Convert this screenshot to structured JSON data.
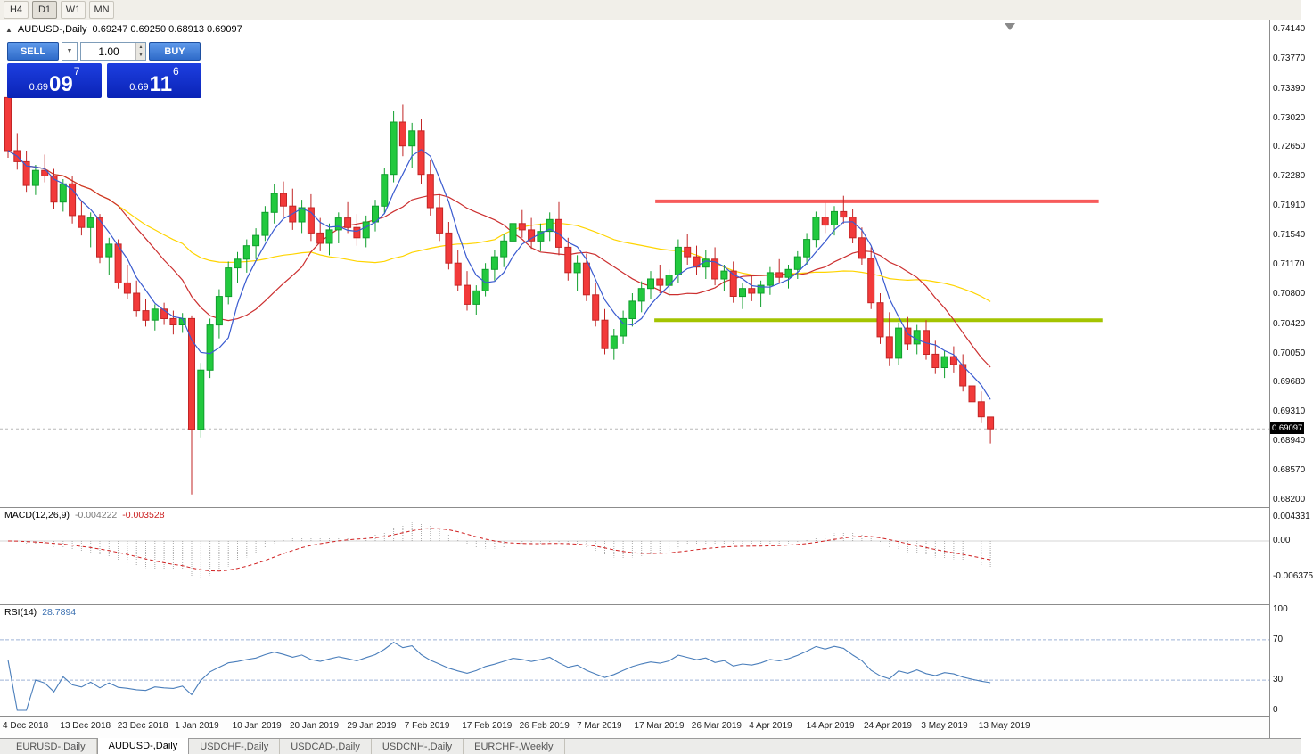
{
  "toolbar": {
    "timeframes": [
      {
        "label": "H4"
      },
      {
        "label": "D1"
      },
      {
        "label": "W1"
      },
      {
        "label": "MN"
      }
    ]
  },
  "trade_panel": {
    "sell_label": "SELL",
    "buy_label": "BUY",
    "volume": "1.00",
    "bid": {
      "prefix": "0.69",
      "big": "09",
      "sup": "7"
    },
    "ask": {
      "prefix": "0.69",
      "big": "11",
      "sup": "6"
    }
  },
  "tabs": {
    "items": [
      {
        "label": "EURUSD-,Daily"
      },
      {
        "label": "AUDUSD-,Daily"
      },
      {
        "label": "USDCHF-,Daily"
      },
      {
        "label": "USDCAD-,Daily"
      },
      {
        "label": "USDCNH-,Daily"
      },
      {
        "label": "EURCHF-,Weekly"
      }
    ]
  },
  "colors": {
    "up": "#22c93e",
    "up_border": "#0f9e2c",
    "down": "#f23a3a",
    "down_border": "#c22525",
    "ma_fast": "#3a5bd0",
    "ma_mid": "#cc2f2f",
    "ma_slow": "#ffd400",
    "resistance": "#f75b5b",
    "support": "#a4c400",
    "macd_hist": "#a9a9a9",
    "macd_signal": "#d02020",
    "rsi_line": "#4a7ebb",
    "rsi_level": "#9fb4d8",
    "bid_line": "#b8b8b8"
  },
  "chart_data": {
    "type": "candlestick",
    "title": "AUDUSD-,Daily",
    "ohlc_text": "0.69247 0.69250 0.68913 0.69097",
    "bid": 0.69097,
    "bid_label": "0.69097",
    "y_max": 0.7414,
    "y_min": 0.682,
    "y_axis_labels": [
      "0.74140",
      "0.73770",
      "0.73390",
      "0.73020",
      "0.72650",
      "0.72280",
      "0.71910",
      "0.71540",
      "0.71170",
      "0.70800",
      "0.70420",
      "0.70050",
      "0.69680",
      "0.69310",
      "0.68940",
      "0.68570",
      "0.68200"
    ],
    "x_labels": [
      "4 Dec 2018",
      "13 Dec 2018",
      "23 Dec 2018",
      "1 Jan 2019",
      "10 Jan 2019",
      "20 Jan 2019",
      "29 Jan 2019",
      "7 Feb 2019",
      "17 Feb 2019",
      "26 Feb 2019",
      "7 Mar 2019",
      "17 Mar 2019",
      "26 Mar 2019",
      "4 Apr 2019",
      "14 Apr 2019",
      "24 Apr 2019",
      "3 May 2019",
      "13 May 2019"
    ],
    "hlines": [
      {
        "name": "resistance",
        "price": 0.7197,
        "i1": 70.5,
        "i2": 118.8
      },
      {
        "name": "support",
        "price": 0.7047,
        "i1": 70.4,
        "i2": 119.2
      }
    ],
    "indicators": {
      "macd": {
        "label": "MACD(12,26,9)",
        "value": "-0.004222",
        "signal": "-0.003528",
        "axis_labels": [
          "0.004331",
          "0.00",
          "-0.006375"
        ]
      },
      "rsi": {
        "label": "RSI(14)",
        "value": "28.7894",
        "axis_labels": [
          "100",
          "70",
          "30",
          "0"
        ],
        "levels": [
          70,
          30
        ]
      }
    },
    "candles": [
      [
        0.7328,
        0.7341,
        0.7252,
        0.7261
      ],
      [
        0.7261,
        0.7283,
        0.7237,
        0.7247
      ],
      [
        0.7247,
        0.7261,
        0.7209,
        0.7217
      ],
      [
        0.7217,
        0.7243,
        0.7205,
        0.7236
      ],
      [
        0.7236,
        0.7256,
        0.7221,
        0.7229
      ],
      [
        0.7229,
        0.7238,
        0.7187,
        0.7196
      ],
      [
        0.7196,
        0.7225,
        0.7184,
        0.7219
      ],
      [
        0.7219,
        0.7229,
        0.7169,
        0.7179
      ],
      [
        0.7179,
        0.7197,
        0.7154,
        0.7164
      ],
      [
        0.7164,
        0.7183,
        0.7139,
        0.7176
      ],
      [
        0.7176,
        0.7181,
        0.7119,
        0.7127
      ],
      [
        0.7127,
        0.7151,
        0.7104,
        0.7143
      ],
      [
        0.7143,
        0.7149,
        0.7087,
        0.7094
      ],
      [
        0.7094,
        0.7117,
        0.7074,
        0.7081
      ],
      [
        0.7081,
        0.7097,
        0.7051,
        0.7059
      ],
      [
        0.7059,
        0.7074,
        0.7039,
        0.7047
      ],
      [
        0.7047,
        0.7067,
        0.7034,
        0.7061
      ],
      [
        0.7061,
        0.7069,
        0.7041,
        0.7049
      ],
      [
        0.7049,
        0.7059,
        0.7029,
        0.7041
      ],
      [
        0.7041,
        0.7056,
        0.7031,
        0.7049
      ],
      [
        0.7049,
        0.7053,
        0.6827,
        0.6909
      ],
      [
        0.6909,
        0.6993,
        0.6899,
        0.6984
      ],
      [
        0.6984,
        0.7049,
        0.6974,
        0.7041
      ],
      [
        0.7041,
        0.7086,
        0.7024,
        0.7077
      ],
      [
        0.7077,
        0.7121,
        0.7067,
        0.7113
      ],
      [
        0.7113,
        0.7133,
        0.7094,
        0.7124
      ],
      [
        0.7124,
        0.7149,
        0.7107,
        0.7141
      ],
      [
        0.7141,
        0.7163,
        0.7124,
        0.7154
      ],
      [
        0.7154,
        0.7191,
        0.7147,
        0.7183
      ],
      [
        0.7183,
        0.7219,
        0.7169,
        0.7207
      ],
      [
        0.7207,
        0.7222,
        0.7177,
        0.7191
      ],
      [
        0.7191,
        0.7213,
        0.7161,
        0.7171
      ],
      [
        0.7171,
        0.7199,
        0.7157,
        0.7189
      ],
      [
        0.7189,
        0.7206,
        0.7147,
        0.7157
      ],
      [
        0.7157,
        0.7176,
        0.7134,
        0.7144
      ],
      [
        0.7144,
        0.7169,
        0.7129,
        0.7161
      ],
      [
        0.7161,
        0.7183,
        0.7144,
        0.7176
      ],
      [
        0.7176,
        0.7196,
        0.7157,
        0.7164
      ],
      [
        0.7164,
        0.7181,
        0.7141,
        0.7151
      ],
      [
        0.7151,
        0.7179,
        0.7139,
        0.7171
      ],
      [
        0.7171,
        0.7199,
        0.7159,
        0.7191
      ],
      [
        0.7191,
        0.7239,
        0.7181,
        0.7231
      ],
      [
        0.7231,
        0.7311,
        0.7221,
        0.7297
      ],
      [
        0.7297,
        0.7319,
        0.7254,
        0.7267
      ],
      [
        0.7267,
        0.7296,
        0.7239,
        0.7286
      ],
      [
        0.7286,
        0.7301,
        0.7219,
        0.7231
      ],
      [
        0.7231,
        0.7249,
        0.7179,
        0.7189
      ],
      [
        0.7189,
        0.7206,
        0.7147,
        0.7157
      ],
      [
        0.7157,
        0.7171,
        0.7111,
        0.7119
      ],
      [
        0.7119,
        0.7136,
        0.7084,
        0.7091
      ],
      [
        0.7091,
        0.7109,
        0.7059,
        0.7067
      ],
      [
        0.7067,
        0.7091,
        0.7054,
        0.7084
      ],
      [
        0.7084,
        0.7119,
        0.7077,
        0.7111
      ],
      [
        0.7111,
        0.7136,
        0.7097,
        0.7127
      ],
      [
        0.7127,
        0.7156,
        0.7114,
        0.7147
      ],
      [
        0.7147,
        0.7179,
        0.7137,
        0.7169
      ],
      [
        0.7169,
        0.7186,
        0.7151,
        0.7161
      ],
      [
        0.7161,
        0.7176,
        0.7137,
        0.7147
      ],
      [
        0.7147,
        0.7169,
        0.7134,
        0.7159
      ],
      [
        0.7159,
        0.7183,
        0.7147,
        0.7174
      ],
      [
        0.7174,
        0.7196,
        0.7129,
        0.7139
      ],
      [
        0.7139,
        0.7151,
        0.7097,
        0.7107
      ],
      [
        0.7107,
        0.7129,
        0.7084,
        0.7119
      ],
      [
        0.7119,
        0.7131,
        0.7071,
        0.7079
      ],
      [
        0.7079,
        0.7094,
        0.7039,
        0.7047
      ],
      [
        0.7047,
        0.7061,
        0.7004,
        0.7011
      ],
      [
        0.7011,
        0.7036,
        0.6997,
        0.7027
      ],
      [
        0.7027,
        0.7059,
        0.7017,
        0.7049
      ],
      [
        0.7049,
        0.7081,
        0.7039,
        0.7071
      ],
      [
        0.7071,
        0.7096,
        0.7057,
        0.7087
      ],
      [
        0.7087,
        0.7109,
        0.7074,
        0.7099
      ],
      [
        0.7099,
        0.7117,
        0.7081,
        0.7091
      ],
      [
        0.7091,
        0.7111,
        0.7077,
        0.7104
      ],
      [
        0.7104,
        0.7149,
        0.7094,
        0.7139
      ],
      [
        0.7139,
        0.7156,
        0.7117,
        0.7127
      ],
      [
        0.7127,
        0.7141,
        0.7104,
        0.7114
      ],
      [
        0.7114,
        0.7136,
        0.7099,
        0.7124
      ],
      [
        0.7124,
        0.7139,
        0.7091,
        0.7099
      ],
      [
        0.7099,
        0.7117,
        0.7084,
        0.7109
      ],
      [
        0.7109,
        0.7121,
        0.7069,
        0.7077
      ],
      [
        0.7077,
        0.7094,
        0.7061,
        0.7087
      ],
      [
        0.7087,
        0.7104,
        0.7071,
        0.7081
      ],
      [
        0.7081,
        0.7097,
        0.7064,
        0.7091
      ],
      [
        0.7091,
        0.7114,
        0.7079,
        0.7107
      ],
      [
        0.7107,
        0.7124,
        0.7094,
        0.7101
      ],
      [
        0.7101,
        0.7117,
        0.7087,
        0.7111
      ],
      [
        0.7111,
        0.7134,
        0.7099,
        0.7127
      ],
      [
        0.7127,
        0.7157,
        0.7117,
        0.7149
      ],
      [
        0.7149,
        0.7184,
        0.7139,
        0.7177
      ],
      [
        0.7177,
        0.7195,
        0.7157,
        0.7167
      ],
      [
        0.7167,
        0.7191,
        0.7154,
        0.7184
      ],
      [
        0.7184,
        0.7204,
        0.7169,
        0.7177
      ],
      [
        0.7177,
        0.7187,
        0.7144,
        0.7151
      ],
      [
        0.7151,
        0.7164,
        0.7117,
        0.7125
      ],
      [
        0.7125,
        0.7139,
        0.7061,
        0.7069
      ],
      [
        0.7069,
        0.7081,
        0.7017,
        0.7026
      ],
      [
        0.7026,
        0.7057,
        0.6989,
        0.6999
      ],
      [
        0.6999,
        0.7044,
        0.6991,
        0.7037
      ],
      [
        0.7037,
        0.7051,
        0.7009,
        0.7017
      ],
      [
        0.7017,
        0.7041,
        0.7004,
        0.7034
      ],
      [
        0.7034,
        0.7047,
        0.6997,
        0.7004
      ],
      [
        0.7004,
        0.7021,
        0.6979,
        0.6987
      ],
      [
        0.6987,
        0.7009,
        0.6974,
        0.7001
      ],
      [
        0.7001,
        0.7014,
        0.6981,
        0.6991
      ],
      [
        0.6991,
        0.7004,
        0.6957,
        0.6964
      ],
      [
        0.6964,
        0.6981,
        0.6937,
        0.6944
      ],
      [
        0.6944,
        0.6957,
        0.6917,
        0.6925
      ],
      [
        0.69247,
        0.6925,
        0.68913,
        0.69097
      ]
    ]
  }
}
